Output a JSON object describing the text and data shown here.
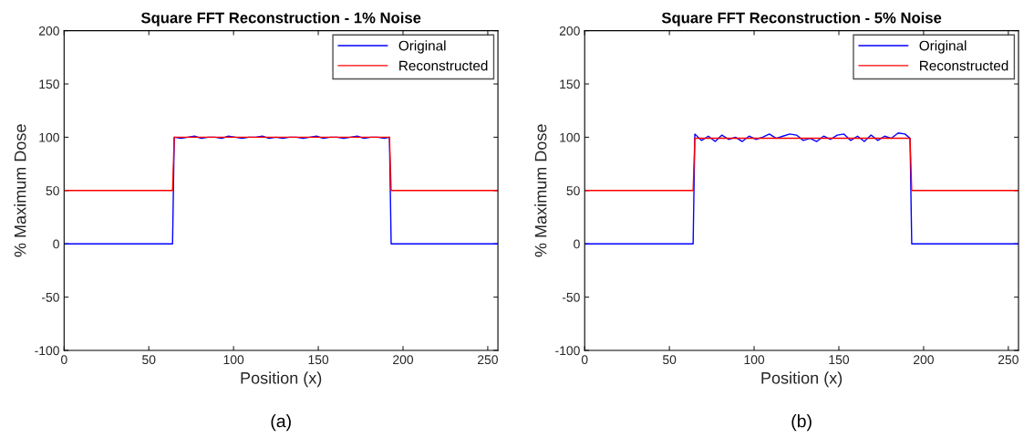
{
  "chart_data": [
    {
      "type": "line",
      "title": "Square FFT Reconstruction - 1% Noise",
      "xlabel": "Position (x)",
      "ylabel": "% Maximum Dose",
      "annotations": [
        "(a)"
      ],
      "xlim": [
        0,
        256
      ],
      "ylim": [
        -100,
        200
      ],
      "xticks": [
        0,
        50,
        100,
        150,
        200,
        250
      ],
      "yticks": [
        -100,
        -50,
        0,
        50,
        100,
        150,
        200
      ],
      "grid": false,
      "legend": "top right",
      "marker": "none",
      "line_style": "solid",
      "series": [
        {
          "name": "Original",
          "color": "#0000ff",
          "x": [
            0,
            64,
            65,
            69,
            73,
            77,
            81,
            85,
            89,
            93,
            97,
            101,
            105,
            109,
            113,
            117,
            121,
            125,
            129,
            133,
            137,
            141,
            145,
            149,
            153,
            157,
            161,
            165,
            169,
            173,
            177,
            181,
            185,
            189,
            192,
            193,
            256
          ],
          "values": [
            0,
            0,
            100,
            99,
            100,
            101,
            99,
            100,
            100,
            99,
            101,
            100,
            99,
            100,
            100,
            101,
            99,
            100,
            99,
            100,
            100,
            99,
            100,
            101,
            99,
            100,
            100,
            99,
            100,
            101,
            99,
            100,
            100,
            99,
            100,
            0,
            0
          ]
        },
        {
          "name": "Reconstructed",
          "color": "#ff0000",
          "x": [
            0,
            64,
            65,
            192,
            193,
            256
          ],
          "values": [
            50,
            50,
            100,
            100,
            50,
            50
          ]
        }
      ]
    },
    {
      "type": "line",
      "title": "Square FFT Reconstruction - 5% Noise",
      "xlabel": "Position (x)",
      "ylabel": "% Maximum Dose",
      "annotations": [
        "(b)"
      ],
      "xlim": [
        0,
        256
      ],
      "ylim": [
        -100,
        200
      ],
      "xticks": [
        0,
        50,
        100,
        150,
        200,
        250
      ],
      "yticks": [
        -100,
        -50,
        0,
        50,
        100,
        150,
        200
      ],
      "grid": false,
      "legend": "top right",
      "marker": "none",
      "line_style": "solid",
      "series": [
        {
          "name": "Original",
          "color": "#0000ff",
          "x": [
            0,
            64,
            65,
            69,
            73,
            77,
            81,
            85,
            89,
            93,
            97,
            101,
            105,
            109,
            113,
            117,
            121,
            125,
            129,
            133,
            137,
            141,
            145,
            149,
            153,
            157,
            161,
            165,
            169,
            173,
            177,
            181,
            185,
            189,
            192,
            193,
            256
          ],
          "values": [
            0,
            0,
            103,
            97,
            101,
            96,
            102,
            98,
            100,
            96,
            101,
            98,
            100,
            103,
            99,
            101,
            103,
            102,
            97,
            99,
            96,
            101,
            98,
            102,
            103,
            97,
            101,
            96,
            102,
            97,
            101,
            99,
            104,
            103,
            99,
            0,
            0
          ]
        },
        {
          "name": "Reconstructed",
          "color": "#ff0000",
          "x": [
            0,
            64,
            65,
            192,
            193,
            256
          ],
          "values": [
            50,
            50,
            99,
            99,
            50,
            50
          ]
        }
      ]
    }
  ]
}
